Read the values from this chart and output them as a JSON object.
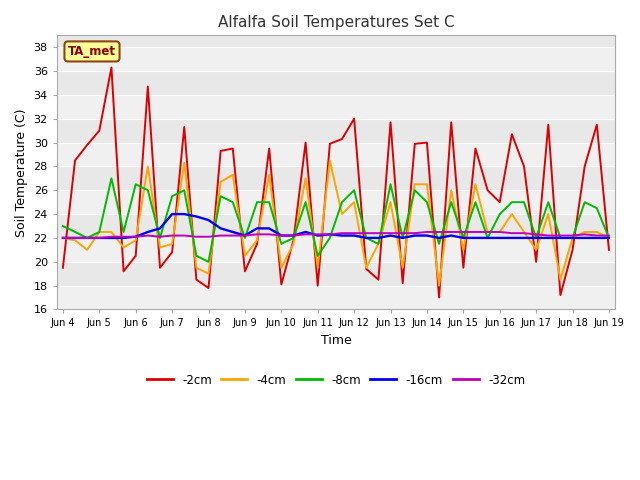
{
  "title": "Alfalfa Soil Temperatures Set C",
  "xlabel": "Time",
  "ylabel": "Soil Temperature (C)",
  "ylim": [
    16,
    39
  ],
  "yticks": [
    16,
    18,
    20,
    22,
    24,
    26,
    28,
    30,
    32,
    34,
    36,
    38
  ],
  "fig_bg": "#ffffff",
  "plot_bg": "#e8e8e8",
  "grid_color": "#f8f8f8",
  "annotation_text": "TA_met",
  "annotation_color": "#8B0000",
  "annotation_bg": "#FFFF99",
  "annotation_border": "#8B4513",
  "series_2cm_color": "#DD0000",
  "series_4cm_color": "#FFA500",
  "series_8cm_color": "#00BB00",
  "series_16cm_color": "#0000EE",
  "series_32cm_color": "#BB00BB",
  "linewidth": 1.4,
  "series_2cm": [
    19.5,
    28.5,
    29.8,
    31.0,
    36.3,
    19.2,
    20.5,
    34.7,
    19.5,
    20.8,
    31.3,
    18.5,
    17.8,
    29.3,
    29.5,
    19.2,
    21.5,
    29.5,
    18.1,
    21.8,
    30.0,
    18.0,
    29.9,
    30.3,
    32.0,
    19.4,
    18.5,
    31.7,
    18.2,
    29.9,
    30.0,
    17.0,
    31.7,
    19.5,
    29.5,
    26.0,
    25.0,
    30.7,
    28.0,
    20.0,
    31.5,
    17.2,
    21.0,
    28.0,
    31.5,
    21.0
  ],
  "series_4cm": [
    22.0,
    21.8,
    21.0,
    22.5,
    22.5,
    21.2,
    21.8,
    28.0,
    21.2,
    21.5,
    28.3,
    19.5,
    19.0,
    26.7,
    27.3,
    20.5,
    21.8,
    27.3,
    19.5,
    21.5,
    27.0,
    19.5,
    28.5,
    24.0,
    25.0,
    19.5,
    21.5,
    25.0,
    19.5,
    26.5,
    26.5,
    18.0,
    26.0,
    21.0,
    26.5,
    22.5,
    22.5,
    24.0,
    22.5,
    21.0,
    24.0,
    18.5,
    22.0,
    22.5,
    22.5,
    22.0
  ],
  "series_8cm": [
    23.0,
    22.5,
    22.0,
    22.5,
    27.0,
    22.5,
    26.5,
    26.0,
    22.0,
    25.5,
    26.0,
    20.5,
    20.0,
    25.5,
    25.0,
    22.0,
    25.0,
    25.0,
    21.5,
    22.0,
    25.0,
    20.5,
    22.0,
    25.0,
    26.0,
    22.0,
    21.5,
    26.5,
    22.0,
    26.0,
    25.0,
    21.5,
    25.0,
    22.0,
    25.0,
    22.0,
    24.0,
    25.0,
    25.0,
    22.0,
    25.0,
    22.0,
    22.0,
    25.0,
    24.5,
    22.0
  ],
  "series_16cm": [
    22.0,
    22.0,
    22.0,
    22.0,
    22.0,
    22.0,
    22.1,
    22.5,
    22.8,
    24.0,
    24.0,
    23.8,
    23.5,
    22.8,
    22.5,
    22.2,
    22.8,
    22.8,
    22.2,
    22.2,
    22.5,
    22.2,
    22.3,
    22.2,
    22.2,
    22.0,
    22.0,
    22.2,
    22.0,
    22.2,
    22.2,
    22.0,
    22.2,
    22.0,
    22.0,
    22.0,
    22.0,
    22.0,
    22.0,
    22.0,
    22.0,
    22.0,
    22.0,
    22.0,
    22.0,
    22.0
  ],
  "series_32cm": [
    22.0,
    22.0,
    22.0,
    22.0,
    22.1,
    22.1,
    22.1,
    22.2,
    22.1,
    22.2,
    22.2,
    22.1,
    22.1,
    22.2,
    22.2,
    22.2,
    22.3,
    22.3,
    22.2,
    22.2,
    22.3,
    22.3,
    22.3,
    22.4,
    22.4,
    22.4,
    22.4,
    22.4,
    22.4,
    22.4,
    22.5,
    22.5,
    22.5,
    22.5,
    22.5,
    22.5,
    22.5,
    22.4,
    22.4,
    22.3,
    22.2,
    22.2,
    22.2,
    22.3,
    22.2,
    22.2
  ],
  "x_tick_positions": [
    0,
    3,
    6,
    9,
    12,
    15,
    18,
    21,
    24,
    27,
    30,
    33,
    36,
    39,
    42,
    45
  ],
  "x_labels": [
    "Jun 4",
    "Jun 5",
    "Jun 6",
    "Jun 7",
    "Jun 8",
    "Jun 9",
    "Jun 10",
    "Jun 11",
    "Jun 12",
    "Jun 13",
    "Jun 14",
    "Jun 15",
    "Jun 16",
    "Jun 17",
    "Jun 18",
    "Jun 19"
  ],
  "legend_entries": [
    "-2cm",
    "-4cm",
    "-8cm",
    "-16cm",
    "-32cm"
  ]
}
